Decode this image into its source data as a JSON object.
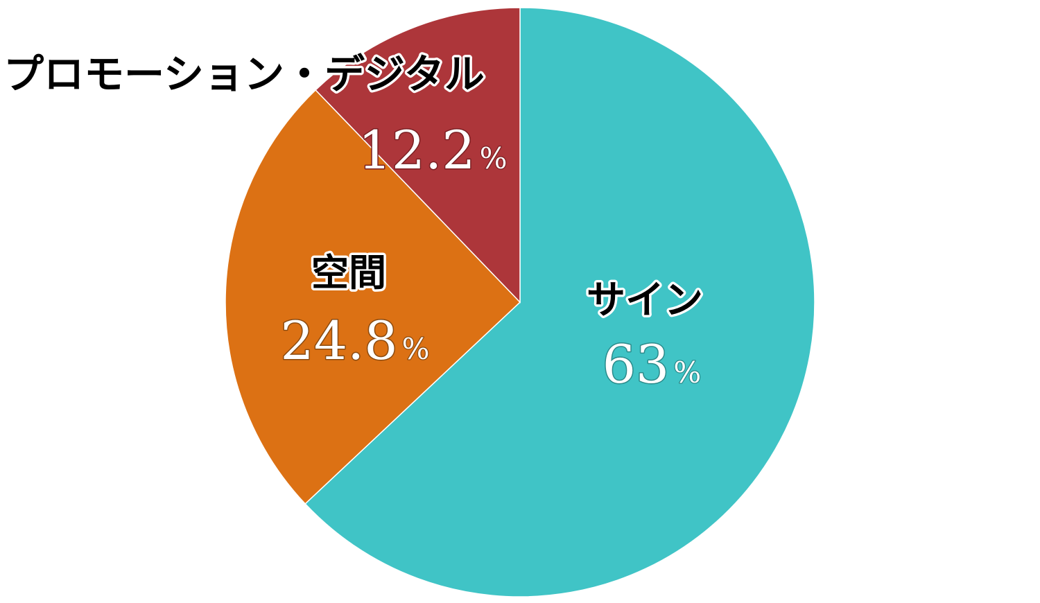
{
  "chart_data": {
    "type": "pie",
    "title": "",
    "start_angle_deg": 0,
    "direction": "clockwise",
    "slices": [
      {
        "name": "サイン",
        "value": 63,
        "value_text": "63",
        "unit": "%",
        "color": "#40c4c6",
        "value_outline": "#2a8a8a"
      },
      {
        "name": "空間",
        "value": 24.8,
        "value_text": "24.8",
        "unit": "%",
        "color": "#dc7114",
        "value_outline": "#8a4a10"
      },
      {
        "name": "プロモーション・デジタル",
        "value": 12.2,
        "value_text": "12.2",
        "unit": "%",
        "color": "#ad363a",
        "value_outline": "#7a1f22"
      }
    ]
  }
}
